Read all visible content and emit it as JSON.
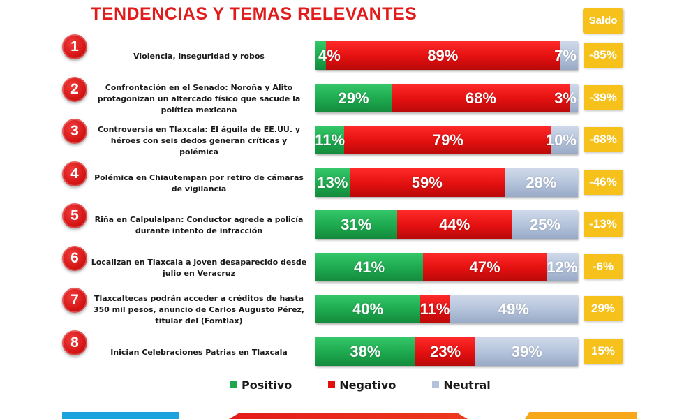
{
  "title": "TENDENCIAS Y TEMAS RELEVANTES",
  "saldo_header": "Saldo",
  "colors": {
    "positive": "#1da84e",
    "negative": "#e31010",
    "neutral": "#b3c2da",
    "saldo": "#f5c11a",
    "badge": "#d41414"
  },
  "legend": [
    {
      "label": "Positivo",
      "color": "#1da84e"
    },
    {
      "label": "Negativo",
      "color": "#e31010"
    },
    {
      "label": "Neutral",
      "color": "#b3c2da"
    }
  ],
  "chart_data": {
    "type": "bar",
    "stacked": true,
    "orientation": "horizontal",
    "normalized": true,
    "title": "TENDENCIAS Y TEMAS RELEVANTES",
    "series_names": [
      "Positivo",
      "Negativo",
      "Neutral"
    ],
    "categories": [
      "Violencia, inseguridad y robos",
      "Confrontación en el Senado: Noroña y Alito protagonizan un altercado físico que sacude la política mexicana",
      "Controversia en Tlaxcala: El águila de EE.UU. y héroes con seis dedos generan críticas y polémica",
      "Polémica en Chiautempan por retiro de cámaras de vigilancia",
      "Riña en Calpulalpan: Conductor agrede a policía durante intento de infracción",
      "Localizan en Tlaxcala a joven desaparecido desde julio en Veracruz",
      "Tlaxcaltecas podrán acceder a créditos de hasta 350 mil pesos, anuncio de Carlos Augusto Pérez, titular del (Fomtlax)",
      "Inician Celebraciones Patrias en Tlaxcala"
    ],
    "rows": [
      {
        "rank": "1",
        "label": "Violencia, inseguridad y robos",
        "positive": 4,
        "negative": 89,
        "neutral": 7,
        "positive_label": "4%",
        "negative_label": "89%",
        "neutral_label": "7%",
        "saldo": "-85%"
      },
      {
        "rank": "2",
        "label": "Confrontación en el Senado: Noroña y Alito protagonizan un altercado físico que sacude la política mexicana",
        "positive": 29,
        "negative": 68,
        "neutral": 3,
        "positive_label": "29%",
        "negative_label": "68%",
        "neutral_label": "3%",
        "saldo": "-39%"
      },
      {
        "rank": "3",
        "label": "Controversia en Tlaxcala: El águila de EE.UU. y héroes con seis dedos generan críticas y polémica",
        "positive": 11,
        "negative": 79,
        "neutral": 10,
        "positive_label": "11%",
        "negative_label": "79%",
        "neutral_label": "10%",
        "saldo": "-68%"
      },
      {
        "rank": "4",
        "label": "Polémica en Chiautempan por retiro de cámaras de vigilancia",
        "positive": 13,
        "negative": 59,
        "neutral": 28,
        "positive_label": "13%",
        "negative_label": "59%",
        "neutral_label": "28%",
        "saldo": "-46%"
      },
      {
        "rank": "5",
        "label": "Riña en Calpulalpan: Conductor agrede a policía durante intento de infracción",
        "positive": 31,
        "negative": 44,
        "neutral": 25,
        "positive_label": "31%",
        "negative_label": "44%",
        "neutral_label": "25%",
        "saldo": "-13%"
      },
      {
        "rank": "6",
        "label": "Localizan en Tlaxcala a joven desaparecido desde julio en Veracruz",
        "positive": 41,
        "negative": 47,
        "neutral": 12,
        "positive_label": "41%",
        "negative_label": "47%",
        "neutral_label": "12%",
        "saldo": "-6%"
      },
      {
        "rank": "7",
        "label": "Tlaxcaltecas podrán acceder a créditos de hasta 350 mil pesos, anuncio de Carlos Augusto Pérez, titular del (Fomtlax)",
        "positive": 40,
        "negative": 11,
        "neutral": 49,
        "positive_label": "40%",
        "negative_label": "11%",
        "neutral_label": "49%",
        "saldo": "29%"
      },
      {
        "rank": "8",
        "label": "Inician Celebraciones Patrias en Tlaxcala",
        "positive": 38,
        "negative": 23,
        "neutral": 39,
        "positive_label": "38%",
        "negative_label": "23%",
        "neutral_label": "39%",
        "saldo": "15%"
      }
    ],
    "xlim": [
      0,
      100
    ]
  }
}
